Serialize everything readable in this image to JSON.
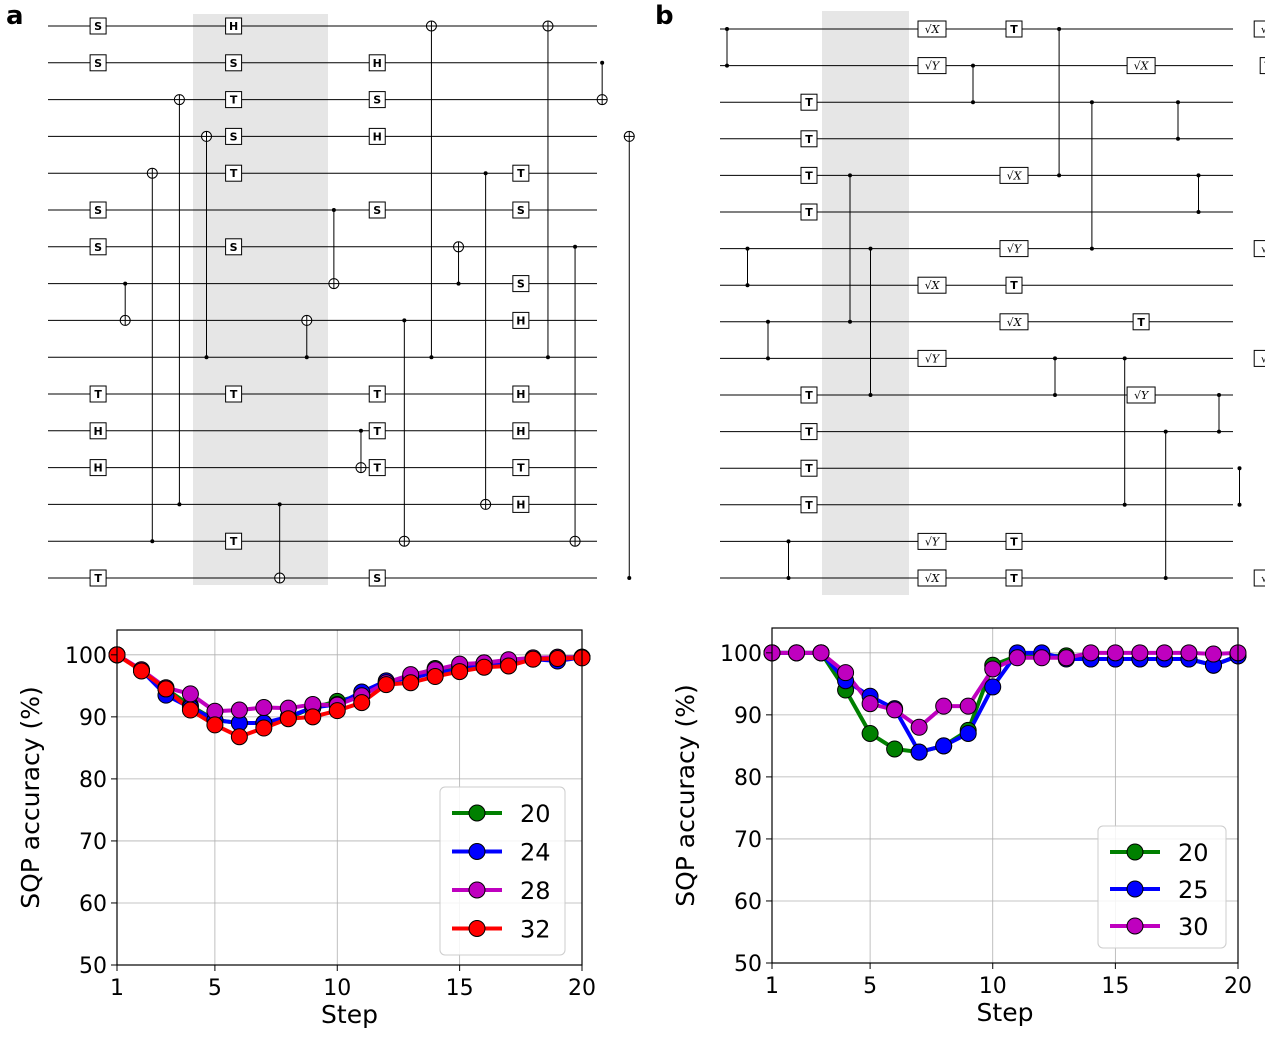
{
  "panels": [
    {
      "letter": "a",
      "circuit": {
        "num_wires": 16,
        "gates": [
          {
            "w": 0,
            "s": 1,
            "l": "S"
          },
          {
            "w": 1,
            "s": 1,
            "l": "S"
          },
          {
            "w": 5,
            "s": 1,
            "l": "S"
          },
          {
            "w": 6,
            "s": 1,
            "l": "S"
          },
          {
            "w": 10,
            "s": 1,
            "l": "T"
          },
          {
            "w": 11,
            "s": 1,
            "l": "H"
          },
          {
            "w": 12,
            "s": 1,
            "l": "H"
          },
          {
            "w": 15,
            "s": 1,
            "l": "T"
          },
          {
            "w": 0,
            "s": 6,
            "l": "H"
          },
          {
            "w": 1,
            "s": 6,
            "l": "S"
          },
          {
            "w": 2,
            "s": 6,
            "l": "T"
          },
          {
            "w": 3,
            "s": 6,
            "l": "S"
          },
          {
            "w": 4,
            "s": 6,
            "l": "T"
          },
          {
            "w": 6,
            "s": 6,
            "l": "S"
          },
          {
            "w": 10,
            "s": 6,
            "l": "T"
          },
          {
            "w": 14,
            "s": 6,
            "l": "T"
          },
          {
            "w": 1,
            "s": 11.3,
            "l": "H"
          },
          {
            "w": 2,
            "s": 11.3,
            "l": "S"
          },
          {
            "w": 3,
            "s": 11.3,
            "l": "H"
          },
          {
            "w": 5,
            "s": 11.3,
            "l": "S"
          },
          {
            "w": 10,
            "s": 11.3,
            "l": "T"
          },
          {
            "w": 11,
            "s": 11.3,
            "l": "T"
          },
          {
            "w": 12,
            "s": 11.3,
            "l": "T"
          },
          {
            "w": 15,
            "s": 11.3,
            "l": "S"
          },
          {
            "w": 4,
            "s": 16.6,
            "l": "T"
          },
          {
            "w": 5,
            "s": 16.6,
            "l": "S"
          },
          {
            "w": 7,
            "s": 16.6,
            "l": "S"
          },
          {
            "w": 8,
            "s": 16.6,
            "l": "H"
          },
          {
            "w": 10,
            "s": 16.6,
            "l": "H"
          },
          {
            "w": 11,
            "s": 16.6,
            "l": "H"
          },
          {
            "w": 12,
            "s": 16.6,
            "l": "T"
          },
          {
            "w": 13,
            "s": 16.6,
            "l": "H"
          }
        ],
        "cnots": [
          {
            "s": 2,
            "c": 7,
            "t": 8
          },
          {
            "s": 3,
            "c": 14,
            "t": 4
          },
          {
            "s": 4,
            "c": 13,
            "t": 2
          },
          {
            "s": 5,
            "c": 9,
            "t": 3
          },
          {
            "s": 7.7,
            "c": 13,
            "t": 15
          },
          {
            "s": 8.7,
            "c": 9,
            "t": 8
          },
          {
            "s": 9.7,
            "c": 5,
            "t": 7
          },
          {
            "s": 10.7,
            "c": 11,
            "t": 12
          },
          {
            "s": 12.3,
            "c": 8,
            "t": 14
          },
          {
            "s": 13.3,
            "c": 9,
            "t": 0
          },
          {
            "s": 14.3,
            "c": 7,
            "t": 6
          },
          {
            "s": 15.3,
            "c": 4,
            "t": 13
          },
          {
            "s": 17.6,
            "c": 9,
            "t": 0
          },
          {
            "s": 18.6,
            "c": 6,
            "t": 14
          },
          {
            "s": 19.6,
            "c": 1,
            "t": 2
          },
          {
            "s": 20.6,
            "c": 15,
            "t": 3
          }
        ]
      },
      "chart_data": {
        "type": "line",
        "xlabel": "Step",
        "ylabel": "SQP accuracy (%)",
        "xlim": [
          1,
          20
        ],
        "ylim": [
          50,
          104
        ],
        "xticks": [
          1,
          5,
          10,
          15,
          20
        ],
        "yticks": [
          50,
          60,
          70,
          80,
          90,
          100
        ],
        "grid": true,
        "legend_position": "lower-right",
        "x": [
          1,
          2,
          3,
          4,
          5,
          6,
          7,
          8,
          9,
          10,
          11,
          12,
          13,
          14,
          15,
          16,
          17,
          18,
          19,
          20
        ],
        "series": [
          {
            "name": "20",
            "color": "#008000",
            "values": [
              100,
              97.5,
              94.5,
              91.8,
              89.5,
              89,
              89,
              89.8,
              91.5,
              92.5,
              93.5,
              95.5,
              96.5,
              97.8,
              98,
              98.7,
              99,
              99.4,
              99.6,
              99.6
            ]
          },
          {
            "name": "24",
            "color": "#0000ff",
            "values": [
              100,
              97.5,
              93.5,
              91.5,
              89.5,
              89,
              89,
              90,
              91.5,
              92,
              94,
              95.8,
              96.2,
              97.2,
              97.5,
              98.5,
              98.8,
              99.3,
              99,
              99.6
            ]
          },
          {
            "name": "28",
            "color": "#bf00bf",
            "values": [
              100,
              97.6,
              94.7,
              93.7,
              90.9,
              91.1,
              91.5,
              91.4,
              92,
              91.9,
              93.4,
              95.5,
              96.8,
              97.6,
              98.5,
              98.7,
              99.2,
              99.5,
              99.6,
              99.6
            ]
          },
          {
            "name": "32",
            "color": "#ff0000",
            "values": [
              100,
              97.4,
              94.5,
              91.1,
              88.7,
              86.8,
              88.2,
              89.7,
              90,
              91,
              92.3,
              95.2,
              95.5,
              96.5,
              97.3,
              98,
              98.2,
              99.3,
              99.4,
              99.5
            ]
          }
        ]
      }
    },
    {
      "letter": "b",
      "circuit": {
        "num_wires": 16,
        "gates": [
          {
            "w": 2,
            "s": 2,
            "l": "T"
          },
          {
            "w": 3,
            "s": 2,
            "l": "T"
          },
          {
            "w": 4,
            "s": 2,
            "l": "T"
          },
          {
            "w": 5,
            "s": 2,
            "l": "T"
          },
          {
            "w": 10,
            "s": 2,
            "l": "T"
          },
          {
            "w": 11,
            "s": 2,
            "l": "T"
          },
          {
            "w": 12,
            "s": 2,
            "l": "T"
          },
          {
            "w": 13,
            "s": 2,
            "l": "T"
          },
          {
            "w": 0,
            "s": 5,
            "l": "√X"
          },
          {
            "w": 1,
            "s": 5,
            "l": "√Y"
          },
          {
            "w": 7,
            "s": 5,
            "l": "√X"
          },
          {
            "w": 9,
            "s": 5,
            "l": "√Y"
          },
          {
            "w": 14,
            "s": 5,
            "l": "√Y"
          },
          {
            "w": 15,
            "s": 5,
            "l": "√X"
          },
          {
            "w": 0,
            "s": 7,
            "l": "T"
          },
          {
            "w": 4,
            "s": 7,
            "l": "√X"
          },
          {
            "w": 6,
            "s": 7,
            "l": "√Y"
          },
          {
            "w": 7,
            "s": 7,
            "l": "T"
          },
          {
            "w": 8,
            "s": 7,
            "l": "√X"
          },
          {
            "w": 14,
            "s": 7,
            "l": "T"
          },
          {
            "w": 15,
            "s": 7,
            "l": "T"
          },
          {
            "w": 1,
            "s": 10.1,
            "l": "√X"
          },
          {
            "w": 8,
            "s": 10.1,
            "l": "T"
          },
          {
            "w": 10,
            "s": 10.1,
            "l": "√Y"
          },
          {
            "w": 0,
            "s": 13.2,
            "l": "√X"
          },
          {
            "w": 1,
            "s": 13.2,
            "l": "T"
          },
          {
            "w": 6,
            "s": 13.2,
            "l": "√Y"
          },
          {
            "w": 9,
            "s": 13.2,
            "l": "√X"
          },
          {
            "w": 15,
            "s": 13.2,
            "l": "√Y"
          }
        ],
        "czs": [
          {
            "s": 0,
            "a": 0,
            "b": 1
          },
          {
            "s": 0.5,
            "a": 6,
            "b": 7
          },
          {
            "s": 1,
            "a": 8,
            "b": 9
          },
          {
            "s": 1.5,
            "a": 14,
            "b": 15
          },
          {
            "s": 3,
            "a": 4,
            "b": 8
          },
          {
            "s": 3.5,
            "a": 6,
            "b": 10
          },
          {
            "s": 6,
            "a": 1,
            "b": 2
          },
          {
            "s": 8,
            "a": 9,
            "b": 10
          },
          {
            "s": 8.1,
            "a": 0,
            "b": 4
          },
          {
            "s": 8.9,
            "a": 2,
            "b": 6
          },
          {
            "s": 9.7,
            "a": 9,
            "b": 13
          },
          {
            "s": 10.7,
            "a": 11,
            "b": 15
          },
          {
            "s": 11,
            "a": 2,
            "b": 3
          },
          {
            "s": 11.5,
            "a": 4,
            "b": 5
          },
          {
            "s": 12,
            "a": 10,
            "b": 11
          },
          {
            "s": 12.5,
            "a": 12,
            "b": 13
          }
        ]
      },
      "chart_data": {
        "type": "line",
        "xlabel": "Step",
        "ylabel": "SQP accuracy (%)",
        "xlim": [
          1,
          20
        ],
        "ylim": [
          50,
          104
        ],
        "xticks": [
          1,
          5,
          10,
          15,
          20
        ],
        "yticks": [
          50,
          60,
          70,
          80,
          90,
          100
        ],
        "grid": true,
        "legend_position": "lower-right",
        "x": [
          1,
          2,
          3,
          4,
          5,
          6,
          7,
          8,
          9,
          10,
          11,
          12,
          13,
          14,
          15,
          16,
          17,
          18,
          19,
          20
        ],
        "series": [
          {
            "name": "20",
            "color": "#008000",
            "values": [
              100,
              100,
              100,
              94,
              87,
              84.5,
              84,
              85,
              87.5,
              98,
              99.5,
              99.5,
              99.5,
              99,
              99,
              99,
              99,
              99,
              98,
              99.5
            ]
          },
          {
            "name": "25",
            "color": "#0000ff",
            "values": [
              100,
              100,
              100,
              95.5,
              93,
              91,
              84,
              85,
              87,
              94.5,
              100,
              100,
              99,
              99,
              99,
              99,
              99,
              99,
              98,
              99.5
            ]
          },
          {
            "name": "30",
            "color": "#bf00bf",
            "values": [
              100,
              100,
              100,
              96.8,
              91.8,
              90.8,
              88,
              91.4,
              91.4,
              97.4,
              99.2,
              99.2,
              99.2,
              100,
              100,
              100,
              100,
              100,
              99.8,
              100
            ]
          }
        ]
      }
    }
  ]
}
